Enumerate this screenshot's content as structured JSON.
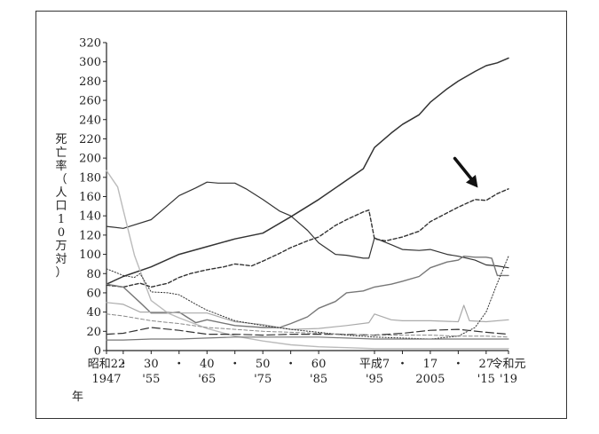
{
  "chart_data": {
    "type": "line",
    "ylabel": "死亡率（人口10万対）",
    "ylim": [
      0,
      320
    ],
    "yticks": [
      0,
      20,
      40,
      60,
      80,
      100,
      120,
      140,
      160,
      180,
      200,
      220,
      240,
      260,
      280,
      300,
      320
    ],
    "xlim": [
      1947,
      2019
    ],
    "xtick_labels": [
      {
        "x": 1947,
        "top": "昭和22",
        "bottom": "1947"
      },
      {
        "x": 1950,
        "top": "・",
        "bottom": ""
      },
      {
        "x": 1955,
        "top": "30",
        "bottom": "'55"
      },
      {
        "x": 1960,
        "top": "・",
        "bottom": ""
      },
      {
        "x": 1965,
        "top": "40",
        "bottom": "'65"
      },
      {
        "x": 1970,
        "top": "・",
        "bottom": ""
      },
      {
        "x": 1975,
        "top": "50",
        "bottom": "'75"
      },
      {
        "x": 1980,
        "top": "・",
        "bottom": ""
      },
      {
        "x": 1985,
        "top": "60",
        "bottom": "'85"
      },
      {
        "x": 1995,
        "top": "平成7",
        "bottom": "'95"
      },
      {
        "x": 2000,
        "top": "・",
        "bottom": ""
      },
      {
        "x": 2005,
        "top": "17",
        "bottom": "2005"
      },
      {
        "x": 2010,
        "top": "・",
        "bottom": ""
      },
      {
        "x": 2015,
        "top": "27",
        "bottom": "'15"
      },
      {
        "x": 2019,
        "top": "令和元",
        "bottom": "'19"
      }
    ],
    "year_label": "年",
    "annotations": [
      {
        "type": "arrow",
        "target_series": "dashed-rising",
        "x": 2014,
        "y": 160
      }
    ],
    "series": [
      {
        "name": "malignant-neoplasms",
        "style": "solid",
        "color": "#333333",
        "width": 1.5,
        "x": [
          1947,
          1950,
          1955,
          1960,
          1965,
          1970,
          1975,
          1980,
          1985,
          1990,
          1993,
          1995,
          1998,
          2000,
          2003,
          2005,
          2008,
          2010,
          2013,
          2015,
          2017,
          2019
        ],
        "y": [
          69,
          77,
          87,
          100,
          108,
          116,
          122,
          139,
          157,
          177,
          189,
          211,
          226,
          235,
          245,
          258,
          272,
          280,
          290,
          296,
          299,
          304
        ]
      },
      {
        "name": "cerebrovascular",
        "style": "solid",
        "color": "#333333",
        "width": 1.2,
        "x": [
          1947,
          1950,
          1955,
          1958,
          1960,
          1963,
          1965,
          1967,
          1970,
          1972,
          1975,
          1978,
          1980,
          1983,
          1985,
          1988,
          1990,
          1993,
          1994,
          1995,
          1998,
          2000,
          2003,
          2005,
          2008,
          2010,
          2013,
          2015,
          2017,
          2019
        ],
        "y": [
          129,
          127,
          136,
          151,
          161,
          169,
          175,
          174,
          174,
          168,
          157,
          145,
          140,
          125,
          112,
          100,
          99,
          96,
          96,
          117,
          110,
          105,
          104,
          105,
          100,
          98,
          94,
          89,
          88,
          86
        ]
      },
      {
        "name": "dashed-rising",
        "style": "dashed-short",
        "color": "#333333",
        "width": 1.4,
        "x": [
          1947,
          1950,
          1953,
          1955,
          1958,
          1960,
          1962,
          1965,
          1968,
          1970,
          1973,
          1975,
          1978,
          1980,
          1983,
          1985,
          1988,
          1990,
          1993,
          1994,
          1995,
          1997,
          2000,
          2003,
          2005,
          2008,
          2010,
          2013,
          2015,
          2017,
          2019
        ],
        "y": [
          68,
          66,
          70,
          66,
          70,
          76,
          80,
          84,
          87,
          90,
          88,
          93,
          101,
          107,
          114,
          118,
          130,
          136,
          144,
          146,
          116,
          114,
          118,
          124,
          134,
          143,
          149,
          157,
          156,
          163,
          168
        ]
      },
      {
        "name": "pneumonia-rising",
        "style": "solid",
        "color": "#777777",
        "width": 1.4,
        "x": [
          1947,
          1950,
          1953,
          1955,
          1958,
          1960,
          1963,
          1965,
          1970,
          1975,
          1978,
          1980,
          1983,
          1985,
          1988,
          1990,
          1993,
          1995,
          1998,
          2000,
          2003,
          2005,
          2008,
          2010,
          2011,
          2013,
          2015,
          2016,
          2017,
          2019
        ],
        "y": [
          69,
          66,
          50,
          39,
          39,
          40,
          29,
          32,
          26,
          24,
          24,
          28,
          35,
          44,
          51,
          60,
          62,
          66,
          69,
          72,
          77,
          86,
          92,
          94,
          98,
          97,
          97,
          96,
          78,
          78
        ]
      },
      {
        "name": "tuberculosis",
        "style": "solid",
        "color": "#bbbbbb",
        "width": 1.4,
        "x": [
          1947,
          1949,
          1950,
          1952,
          1955,
          1958,
          1960,
          1965,
          1970,
          1975,
          1980,
          1985,
          1990,
          1995,
          2000,
          2005,
          2010,
          2015,
          2019
        ],
        "y": [
          187,
          170,
          146,
          99,
          52,
          39,
          34,
          23,
          15,
          10,
          6,
          4,
          3,
          2,
          2,
          2,
          2,
          2,
          2
        ]
      },
      {
        "name": "heart-disease-light",
        "style": "solid",
        "color": "#aaaaaa",
        "width": 1.2,
        "x": [
          1947,
          1950,
          1953,
          1955,
          1958,
          1960,
          1965,
          1970,
          1975,
          1980,
          1985,
          1990,
          1994,
          1995,
          1998,
          2000,
          2005,
          2010,
          2011,
          2012,
          2015,
          2019
        ],
        "y": [
          50,
          48,
          40,
          40,
          40,
          39,
          39,
          30,
          27,
          22,
          23,
          26,
          29,
          38,
          32,
          31,
          31,
          30,
          47,
          31,
          30,
          32
        ]
      },
      {
        "name": "dotted-declining",
        "style": "dotted",
        "color": "#333333",
        "width": 1.0,
        "x": [
          1947,
          1950,
          1952,
          1953,
          1955,
          1958,
          1960,
          1963,
          1965,
          1970,
          1975,
          1980,
          1985,
          1990,
          1995,
          2000,
          2005,
          2010,
          2013,
          2015,
          2017,
          2019
        ],
        "y": [
          85,
          78,
          76,
          80,
          61,
          60,
          58,
          48,
          42,
          31,
          26,
          22,
          19,
          16,
          14,
          13,
          12,
          15,
          24,
          40,
          70,
          98
        ]
      },
      {
        "name": "dashed-medium",
        "style": "dashed-long",
        "color": "#333333",
        "width": 1.2,
        "x": [
          1947,
          1950,
          1955,
          1960,
          1965,
          1970,
          1975,
          1980,
          1985,
          1990,
          1995,
          2000,
          2005,
          2010,
          2015,
          2019
        ],
        "y": [
          17,
          18,
          24,
          21,
          17,
          17,
          16,
          17,
          17,
          17,
          16,
          18,
          21,
          22,
          19,
          17
        ]
      },
      {
        "name": "solid-low",
        "style": "solid",
        "color": "#777777",
        "width": 1.2,
        "x": [
          1947,
          1950,
          1955,
          1960,
          1965,
          1970,
          1975,
          1980,
          1985,
          1990,
          1995,
          2000,
          2005,
          2010,
          2015,
          2019
        ],
        "y": [
          11,
          11,
          12,
          12,
          13,
          14,
          14,
          14,
          14,
          13,
          12,
          12,
          12,
          12,
          12,
          12
        ]
      },
      {
        "name": "dashed-gray-low",
        "style": "dashed-short",
        "color": "#888888",
        "width": 1.0,
        "x": [
          1947,
          1950,
          1955,
          1960,
          1965,
          1970,
          1975,
          1980,
          1985,
          1990,
          1995,
          2000,
          2005,
          2010,
          2015,
          2019
        ],
        "y": [
          38,
          36,
          31,
          28,
          24,
          22,
          20,
          19,
          18,
          17,
          16,
          16,
          16,
          15,
          15,
          14
        ]
      }
    ]
  }
}
